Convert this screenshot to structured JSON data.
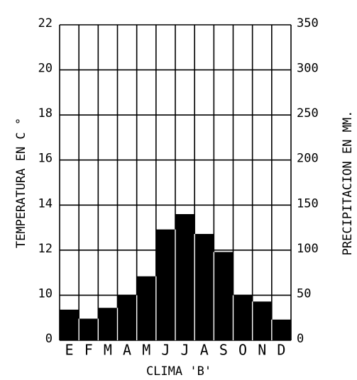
{
  "chart_data": {
    "type": "bar",
    "title": "CLIMA 'B'",
    "ylabel": "TEMPERATURA EN C °",
    "y2label": "PRECIPITACION EN MM.",
    "categories": [
      "E",
      "F",
      "M",
      "A",
      "M",
      "J",
      "J",
      "A",
      "S",
      "O",
      "N",
      "D"
    ],
    "series": [
      {
        "name": "Precipitación",
        "color": "#000000",
        "axis": "y2",
        "values": [
          34,
          24,
          36,
          50,
          71,
          123,
          140,
          118,
          98,
          50,
          43,
          23
        ]
      }
    ],
    "yticks": [
      0,
      10,
      12,
      14,
      16,
      18,
      20,
      22
    ],
    "y2lim": [
      0,
      350
    ],
    "y2ticks": [
      0,
      50,
      100,
      150,
      200,
      250,
      300,
      350
    ],
    "grid": true
  }
}
